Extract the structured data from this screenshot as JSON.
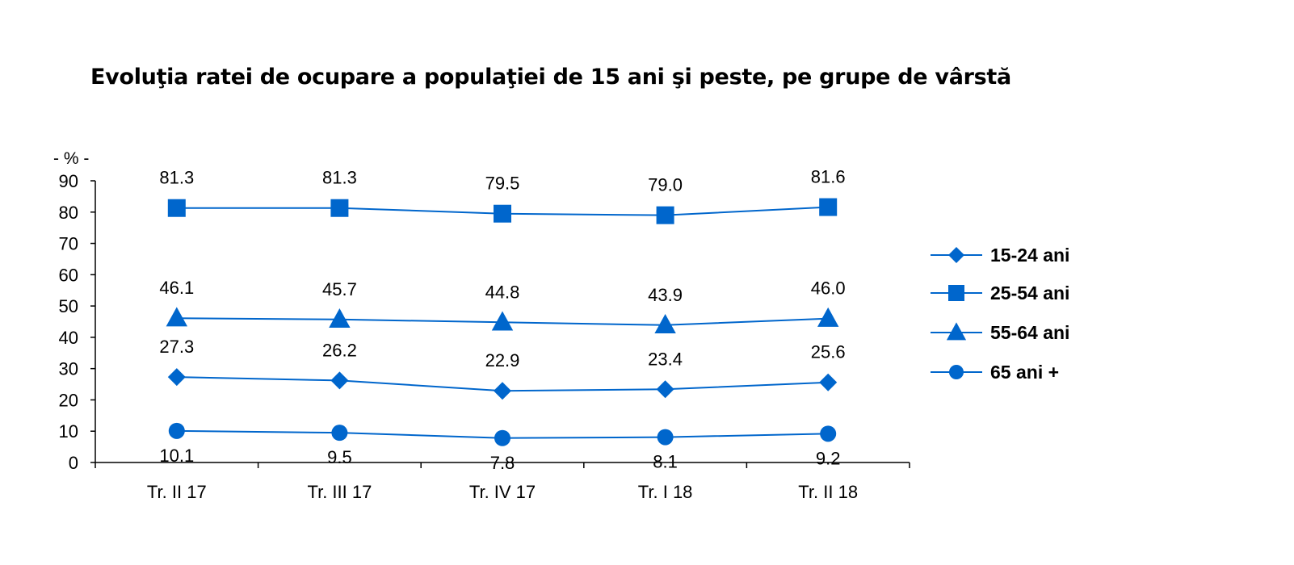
{
  "chart_data": {
    "type": "line",
    "title": "Evoluţia ratei de ocupare a populaţiei de 15 ani şi peste, pe grupe de vârstă",
    "unit_label": "- % -",
    "categories": [
      "Tr. II 17",
      "Tr. III 17",
      "Tr. IV 17",
      "Tr. I 18",
      "Tr. II 18"
    ],
    "ylim": [
      0,
      90
    ],
    "yticks": [
      "0",
      "10",
      "20",
      "30",
      "40",
      "50",
      "60",
      "70",
      "80",
      "90"
    ],
    "grid": false,
    "legend_position": "right",
    "series": [
      {
        "name": "15-24 ani",
        "marker": "diamond",
        "values": [
          27.3,
          26.2,
          22.9,
          23.4,
          25.6
        ],
        "labels": [
          "27.3",
          "26.2",
          "22.9",
          "23.4",
          "25.6"
        ]
      },
      {
        "name": "25-54 ani",
        "marker": "square",
        "values": [
          81.3,
          81.3,
          79.5,
          79.0,
          81.6
        ],
        "labels": [
          "81.3",
          "81.3",
          "79.5",
          "79.0",
          "81.6"
        ]
      },
      {
        "name": "55-64 ani",
        "marker": "triangle",
        "values": [
          46.1,
          45.7,
          44.8,
          43.9,
          46.0
        ],
        "labels": [
          "46.1",
          "45.7",
          "44.8",
          "43.9",
          "46.0"
        ]
      },
      {
        "name": "65 ani +",
        "marker": "circle",
        "values": [
          10.1,
          9.5,
          7.8,
          8.1,
          9.2
        ],
        "labels": [
          "10.1",
          "9.5",
          "7.8",
          "8.1",
          "9.2"
        ]
      }
    ],
    "colors": {
      "series": "#0066cc",
      "axis": "#000000",
      "text": "#000000"
    }
  }
}
